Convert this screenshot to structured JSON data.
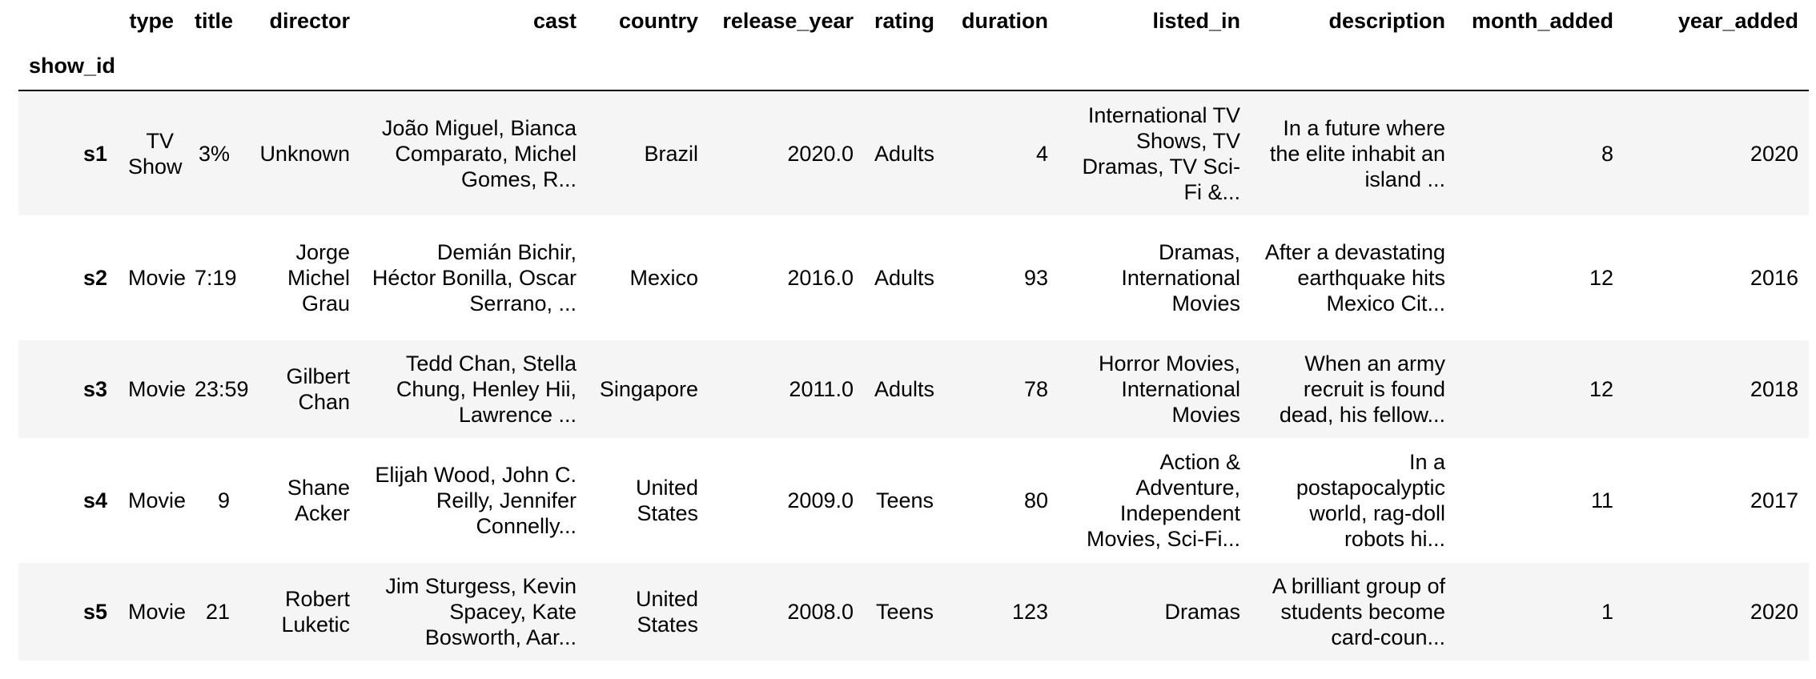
{
  "table": {
    "columns": [
      "type",
      "title",
      "director",
      "cast",
      "country",
      "release_year",
      "rating",
      "duration",
      "listed_in",
      "description",
      "month_added",
      "year_added"
    ],
    "index_name": "show_id",
    "rows": [
      {
        "index": "s1",
        "cells": [
          "TV Show",
          "3%",
          "Unknown",
          "João Miguel, Bianca Comparato, Michel Gomes, R...",
          "Brazil",
          "2020.0",
          "Adults",
          "4",
          "International TV Shows, TV Dramas, TV Sci-Fi &...",
          "In a future where the elite inhabit an island ...",
          "8",
          "2020"
        ]
      },
      {
        "index": "s2",
        "cells": [
          "Movie",
          "7:19",
          "Jorge Michel Grau",
          "Demián Bichir, Héctor Bonilla, Oscar Serrano, ...",
          "Mexico",
          "2016.0",
          "Adults",
          "93",
          "Dramas, International Movies",
          "After a devastating earthquake hits Mexico Cit...",
          "12",
          "2016"
        ]
      },
      {
        "index": "s3",
        "cells": [
          "Movie",
          "23:59",
          "Gilbert Chan",
          "Tedd Chan, Stella Chung, Henley Hii, Lawrence ...",
          "Singapore",
          "2011.0",
          "Adults",
          "78",
          "Horror Movies, International Movies",
          "When an army recruit is found dead, his fellow...",
          "12",
          "2018"
        ]
      },
      {
        "index": "s4",
        "cells": [
          "Movie",
          "9",
          "Shane Acker",
          "Elijah Wood, John C. Reilly, Jennifer Connelly...",
          "United States",
          "2009.0",
          "Teens",
          "80",
          "Action & Adventure, Independent Movies, Sci-Fi...",
          "In a postapocalyptic world, rag-doll robots hi...",
          "11",
          "2017"
        ]
      },
      {
        "index": "s5",
        "cells": [
          "Movie",
          "21",
          "Robert Luketic",
          "Jim Sturgess, Kevin Spacey, Kate Bosworth, Aar...",
          "United States",
          "2008.0",
          "Teens",
          "123",
          "Dramas",
          "A brilliant group of students become card-coun...",
          "1",
          "2020"
        ]
      }
    ]
  }
}
